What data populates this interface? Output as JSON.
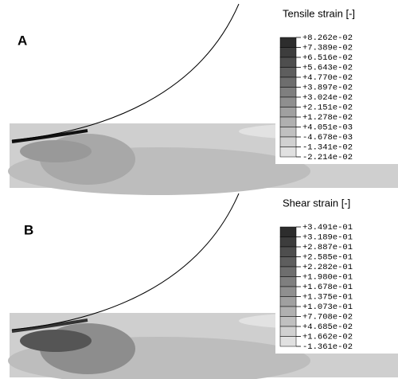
{
  "panels": [
    {
      "label": "A",
      "legend_title": "Tensile strain [-]",
      "levels": [
        "+8.262e-02",
        "+7.389e-02",
        "+6.516e-02",
        "+5.643e-02",
        "+4.770e-02",
        "+3.897e-02",
        "+3.024e-02",
        "+2.151e-02",
        "+1.278e-02",
        "+4.051e-03",
        "-4.678e-03",
        "-1.341e-02",
        "-2.214e-02"
      ]
    },
    {
      "label": "B",
      "legend_title": "Shear strain [-]",
      "levels": [
        "+3.491e-01",
        "+3.189e-01",
        "+2.887e-01",
        "+2.585e-01",
        "+2.282e-01",
        "+1.980e-01",
        "+1.678e-01",
        "+1.375e-01",
        "+1.073e-01",
        "+7.708e-02",
        "+4.685e-02",
        "+1.662e-02",
        "-1.361e-02"
      ]
    }
  ]
}
